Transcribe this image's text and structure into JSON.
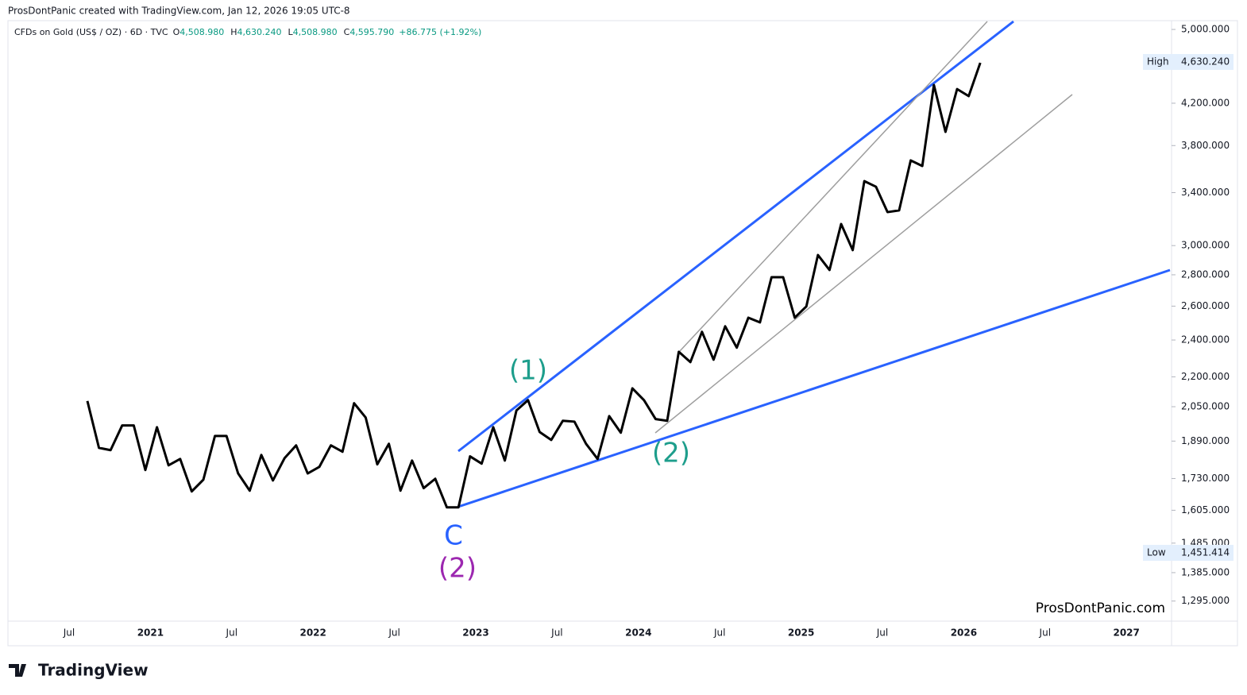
{
  "header": {
    "credit": "ProsDontPanic created with TradingView.com, Jan 12, 2026 19:05 UTC-8",
    "symbol": "CFDs on Gold (US$ / OZ) · 6D · TVC",
    "ohlc": [
      {
        "key": "O",
        "text": "4,508.980"
      },
      {
        "key": "H",
        "text": "4,630.240"
      },
      {
        "key": "L",
        "text": "4,508.980"
      },
      {
        "key": "C",
        "text": "4,595.790"
      }
    ],
    "change": "+86.775 (+1.92%)"
  },
  "chart_data": {
    "type": "line",
    "log_scale": true,
    "series": [
      {
        "color": "#000000",
        "values": [
          2078,
          1860,
          1850,
          1961,
          1961,
          1765,
          1953,
          1785,
          1812,
          1678,
          1725,
          1913,
          1913,
          1751,
          1681,
          1829,
          1722,
          1815,
          1871,
          1751,
          1778,
          1871,
          1843,
          2067,
          1998,
          1789,
          1878,
          1681,
          1805,
          1691,
          1729,
          1616,
          1616,
          1823,
          1792,
          1953,
          1805,
          2032,
          2082,
          1931,
          1895,
          1983,
          1979,
          1878,
          1812,
          2005,
          1928,
          2141,
          2082,
          1991,
          1983,
          2334,
          2278,
          2447,
          2291,
          2479,
          2357,
          2530,
          2502,
          2784,
          2784,
          2530,
          2598,
          2934,
          2832,
          3157,
          2968,
          3494,
          3448,
          3247,
          3260,
          3669,
          3621,
          4385,
          3925,
          4343,
          4271,
          4621
        ]
      }
    ],
    "ylim": [
      1235,
      5105
    ],
    "yticks": [
      {
        "value": 1295,
        "label": "1,295.000"
      },
      {
        "value": 1385,
        "label": "1,385.000"
      },
      {
        "value": 1485,
        "label": "1,485.000"
      },
      {
        "value": 1605,
        "label": "1,605.000"
      },
      {
        "value": 1730,
        "label": "1,730.000"
      },
      {
        "value": 1890,
        "label": "1,890.000"
      },
      {
        "value": 2050,
        "label": "2,050.000"
      },
      {
        "value": 2200,
        "label": "2,200.000"
      },
      {
        "value": 2400,
        "label": "2,400.000"
      },
      {
        "value": 2600,
        "label": "2,600.000"
      },
      {
        "value": 2800,
        "label": "2,800.000"
      },
      {
        "value": 3000,
        "label": "3,000.000"
      },
      {
        "value": 3400,
        "label": "3,400.000"
      },
      {
        "value": 3800,
        "label": "3,800.000"
      },
      {
        "value": 4200,
        "label": "4,200.000"
      },
      {
        "value": 5000,
        "label": "5,000.000"
      }
    ],
    "x_labels": [
      "Jul",
      "2021",
      "Jul",
      "2022",
      "Jul",
      "2023",
      "Jul",
      "2024",
      "Jul",
      "2025",
      "Jul",
      "2026",
      "Jul",
      "2027"
    ],
    "price_markers": [
      {
        "name": "High",
        "value": 4630.24,
        "label": "4,630.240"
      },
      {
        "name": "Low",
        "value": 1451.414,
        "label": "1,451.414"
      }
    ],
    "annotations": [
      {
        "text": "(1)",
        "color": "#1e9e8c"
      },
      {
        "text": "(2)",
        "color": "#1e9e8c"
      },
      {
        "text": "C",
        "color": "#2962ff"
      },
      {
        "text": "(2)",
        "color": "#9c27b0"
      }
    ],
    "watermark": "ProsDontPanic.com"
  },
  "footer": {
    "brand": "TradingView"
  }
}
